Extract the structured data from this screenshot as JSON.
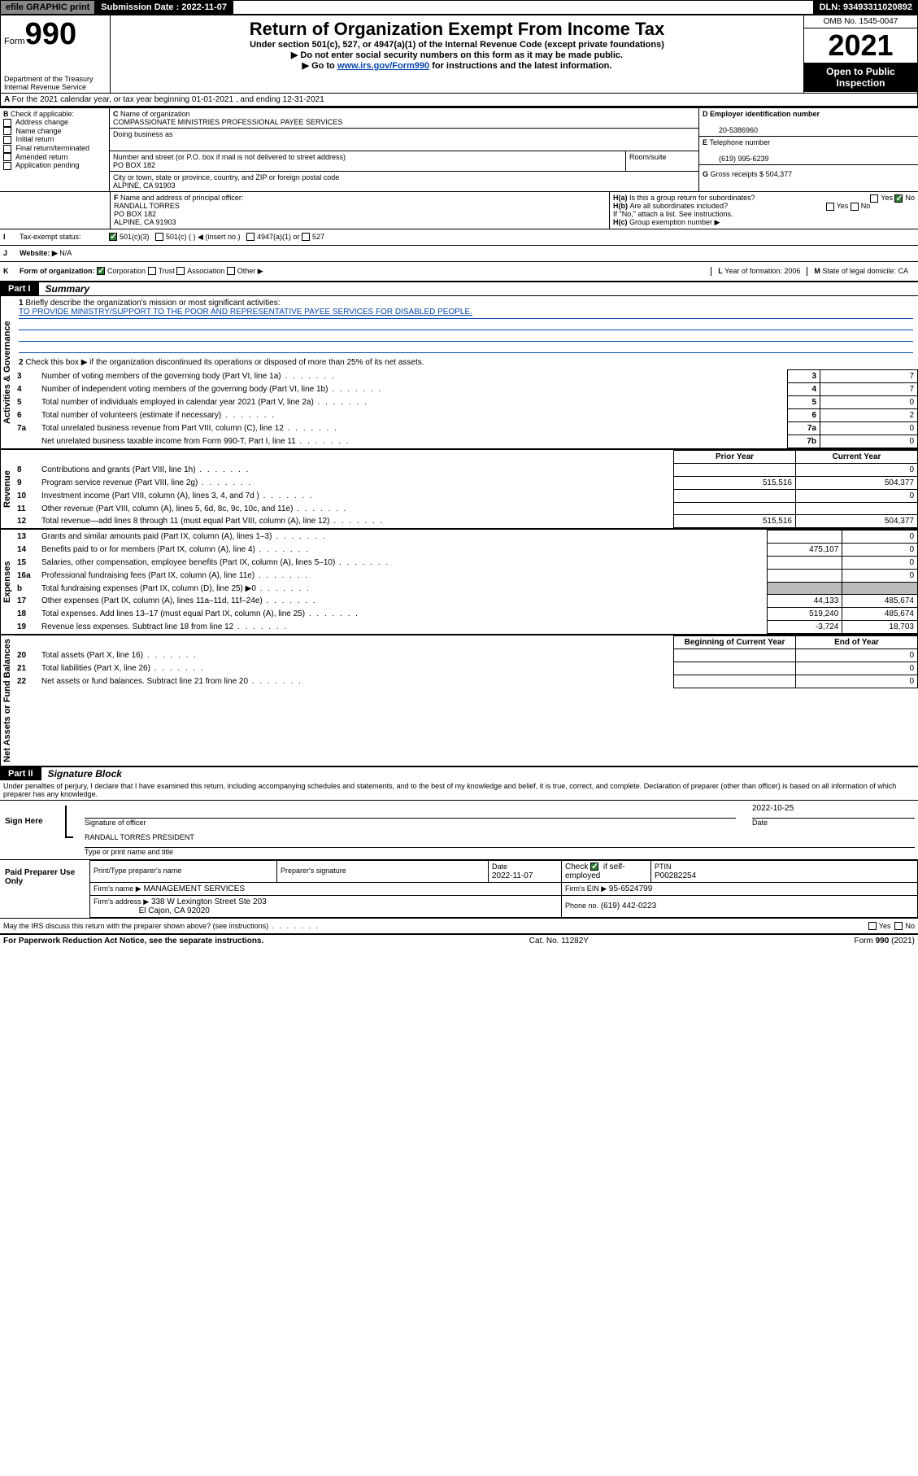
{
  "topbar": {
    "efile": "efile GRAPHIC print",
    "subdate_label": "Submission Date :",
    "subdate": "2022-11-07",
    "dln_label": "DLN:",
    "dln": "93493311020892"
  },
  "header": {
    "form_word": "Form",
    "form_no": "990",
    "dept": "Department of the Treasury",
    "irs": "Internal Revenue Service",
    "title": "Return of Organization Exempt From Income Tax",
    "sub1": "Under section 501(c), 527, or 4947(a)(1) of the Internal Revenue Code (except private foundations)",
    "sub2": "Do not enter social security numbers on this form as it may be made public.",
    "sub3_pre": "Go to ",
    "sub3_link": "www.irs.gov/Form990",
    "sub3_post": " for instructions and the latest information.",
    "omb": "OMB No. 1545-0047",
    "year": "2021",
    "open": "Open to Public Inspection"
  },
  "A": {
    "line": "For the 2021 calendar year, or tax year beginning 01-01-2021   , and ending 12-31-2021"
  },
  "B": {
    "label": "Check if applicable:",
    "opts": [
      "Address change",
      "Name change",
      "Initial return",
      "Final return/terminated",
      "Amended return",
      "Application pending"
    ]
  },
  "C": {
    "name_lbl": "Name of organization",
    "name": "COMPASSIONATE MINISTRIES PROFESSIONAL PAYEE SERVICES",
    "dba_lbl": "Doing business as",
    "street_lbl": "Number and street (or P.O. box if mail is not delivered to street address)",
    "room_lbl": "Room/suite",
    "street": "PO BOX 182",
    "city_lbl": "City or town, state or province, country, and ZIP or foreign postal code",
    "city": "ALPINE, CA  91903"
  },
  "D": {
    "lbl": "Employer identification number",
    "val": "20-5386960"
  },
  "E": {
    "lbl": "Telephone number",
    "val": "(619) 995-6239"
  },
  "G": {
    "lbl": "Gross receipts $",
    "val": "504,377"
  },
  "F": {
    "lbl": "Name and address of principal officer:",
    "name": "RANDALL TORRES",
    "addr1": "PO BOX 182",
    "addr2": "ALPINE, CA  91903"
  },
  "H": {
    "a": "Is this a group return for subordinates?",
    "b": "Are all subordinates included?",
    "b_note": "If \"No,\" attach a list. See instructions.",
    "c": "Group exemption number ▶",
    "yes": "Yes",
    "no": "No"
  },
  "I": {
    "lbl": "Tax-exempt status:",
    "o1": "501(c)(3)",
    "o2": "501(c) (  ) ◀ (insert no.)",
    "o3": "4947(a)(1) or",
    "o4": "527"
  },
  "J": {
    "lbl": "Website: ▶",
    "val": "N/A"
  },
  "K": {
    "lbl": "Form of organization:",
    "o1": "Corporation",
    "o2": "Trust",
    "o3": "Association",
    "o4": "Other ▶"
  },
  "L": {
    "lbl": "Year of formation:",
    "val": "2006"
  },
  "M": {
    "lbl": "State of legal domicile:",
    "val": "CA"
  },
  "part1": {
    "tab": "Part I",
    "title": "Summary",
    "q1": "Briefly describe the organization's mission or most significant activities:",
    "mission": "TO PROVIDE MINISTRY/SUPPORT TO THE POOR AND REPRESENTATIVE PAYEE SERVICES FOR DISABLED PEOPLE.",
    "q2": "Check this box ▶        if the organization discontinued its operations or disposed of more than 25% of its net assets.",
    "side_ag": "Activities & Governance",
    "side_rev": "Revenue",
    "side_exp": "Expenses",
    "side_na": "Net Assets or Fund Balances",
    "prior": "Prior Year",
    "current": "Current Year",
    "boy": "Beginning of Current Year",
    "eoy": "End of Year",
    "rows_top": [
      {
        "n": "3",
        "t": "Number of voting members of the governing body (Part VI, line 1a)",
        "box": "3",
        "v": "7"
      },
      {
        "n": "4",
        "t": "Number of independent voting members of the governing body (Part VI, line 1b)",
        "box": "4",
        "v": "7"
      },
      {
        "n": "5",
        "t": "Total number of individuals employed in calendar year 2021 (Part V, line 2a)",
        "box": "5",
        "v": "0"
      },
      {
        "n": "6",
        "t": "Total number of volunteers (estimate if necessary)",
        "box": "6",
        "v": "2"
      },
      {
        "n": "7a",
        "t": "Total unrelated business revenue from Part VIII, column (C), line 12",
        "box": "7a",
        "v": "0"
      },
      {
        "n": "",
        "t": "Net unrelated business taxable income from Form 990-T, Part I, line 11",
        "box": "7b",
        "v": "0"
      }
    ],
    "rows_rev": [
      {
        "n": "8",
        "t": "Contributions and grants (Part VIII, line 1h)",
        "p": "",
        "c": "0"
      },
      {
        "n": "9",
        "t": "Program service revenue (Part VIII, line 2g)",
        "p": "515,516",
        "c": "504,377"
      },
      {
        "n": "10",
        "t": "Investment income (Part VIII, column (A), lines 3, 4, and 7d )",
        "p": "",
        "c": "0"
      },
      {
        "n": "11",
        "t": "Other revenue (Part VIII, column (A), lines 5, 6d, 8c, 9c, 10c, and 11e)",
        "p": "",
        "c": ""
      },
      {
        "n": "12",
        "t": "Total revenue—add lines 8 through 11 (must equal Part VIII, column (A), line 12)",
        "p": "515,516",
        "c": "504,377"
      }
    ],
    "rows_exp": [
      {
        "n": "13",
        "t": "Grants and similar amounts paid (Part IX, column (A), lines 1–3)",
        "p": "",
        "c": "0"
      },
      {
        "n": "14",
        "t": "Benefits paid to or for members (Part IX, column (A), line 4)",
        "p": "475,107",
        "c": "0"
      },
      {
        "n": "15",
        "t": "Salaries, other compensation, employee benefits (Part IX, column (A), lines 5–10)",
        "p": "",
        "c": "0"
      },
      {
        "n": "16a",
        "t": "Professional fundraising fees (Part IX, column (A), line 11e)",
        "p": "",
        "c": "0"
      },
      {
        "n": "b",
        "t": "Total fundraising expenses (Part IX, column (D), line 25) ▶0",
        "p": "shade",
        "c": "shade"
      },
      {
        "n": "17",
        "t": "Other expenses (Part IX, column (A), lines 11a–11d, 11f–24e)",
        "p": "44,133",
        "c": "485,674"
      },
      {
        "n": "18",
        "t": "Total expenses. Add lines 13–17 (must equal Part IX, column (A), line 25)",
        "p": "519,240",
        "c": "485,674"
      },
      {
        "n": "19",
        "t": "Revenue less expenses. Subtract line 18 from line 12",
        "p": "-3,724",
        "c": "18,703"
      }
    ],
    "rows_na": [
      {
        "n": "20",
        "t": "Total assets (Part X, line 16)",
        "p": "",
        "c": "0"
      },
      {
        "n": "21",
        "t": "Total liabilities (Part X, line 26)",
        "p": "",
        "c": "0"
      },
      {
        "n": "22",
        "t": "Net assets or fund balances. Subtract line 21 from line 20",
        "p": "",
        "c": "0"
      }
    ]
  },
  "part2": {
    "tab": "Part II",
    "title": "Signature Block",
    "decl": "Under penalties of perjury, I declare that I have examined this return, including accompanying schedules and statements, and to the best of my knowledge and belief, it is true, correct, and complete. Declaration of preparer (other than officer) is based on all information of which preparer has any knowledge.",
    "sign_here": "Sign Here",
    "sig_officer": "Signature of officer",
    "sig_date": "2022-10-25",
    "date_lbl": "Date",
    "officer_name": "RANDALL TORRES PRESIDENT",
    "officer_lbl": "Type or print name and title",
    "paid": "Paid Preparer Use Only",
    "prep_name_lbl": "Print/Type preparer's name",
    "prep_sig_lbl": "Preparer's signature",
    "prep_date_lbl": "Date",
    "prep_date": "2022-11-07",
    "check_lbl": "Check         if self-employed",
    "ptin_lbl": "PTIN",
    "ptin": "P00282254",
    "firm_name_lbl": "Firm's name     ▶",
    "firm_name": "MANAGEMENT SERVICES",
    "firm_ein_lbl": "Firm's EIN ▶",
    "firm_ein": "95-6524799",
    "firm_addr_lbl": "Firm's address ▶",
    "firm_addr1": "338 W Lexington Street Ste 203",
    "firm_addr2": "El Cajon, CA  92020",
    "phone_lbl": "Phone no.",
    "phone": "(619) 442-0223",
    "may_irs": "May the IRS discuss this return with the preparer shown above? (see instructions)"
  },
  "footer": {
    "pra": "For Paperwork Reduction Act Notice, see the separate instructions.",
    "cat": "Cat. No. 11282Y",
    "form": "Form 990 (2021)"
  }
}
